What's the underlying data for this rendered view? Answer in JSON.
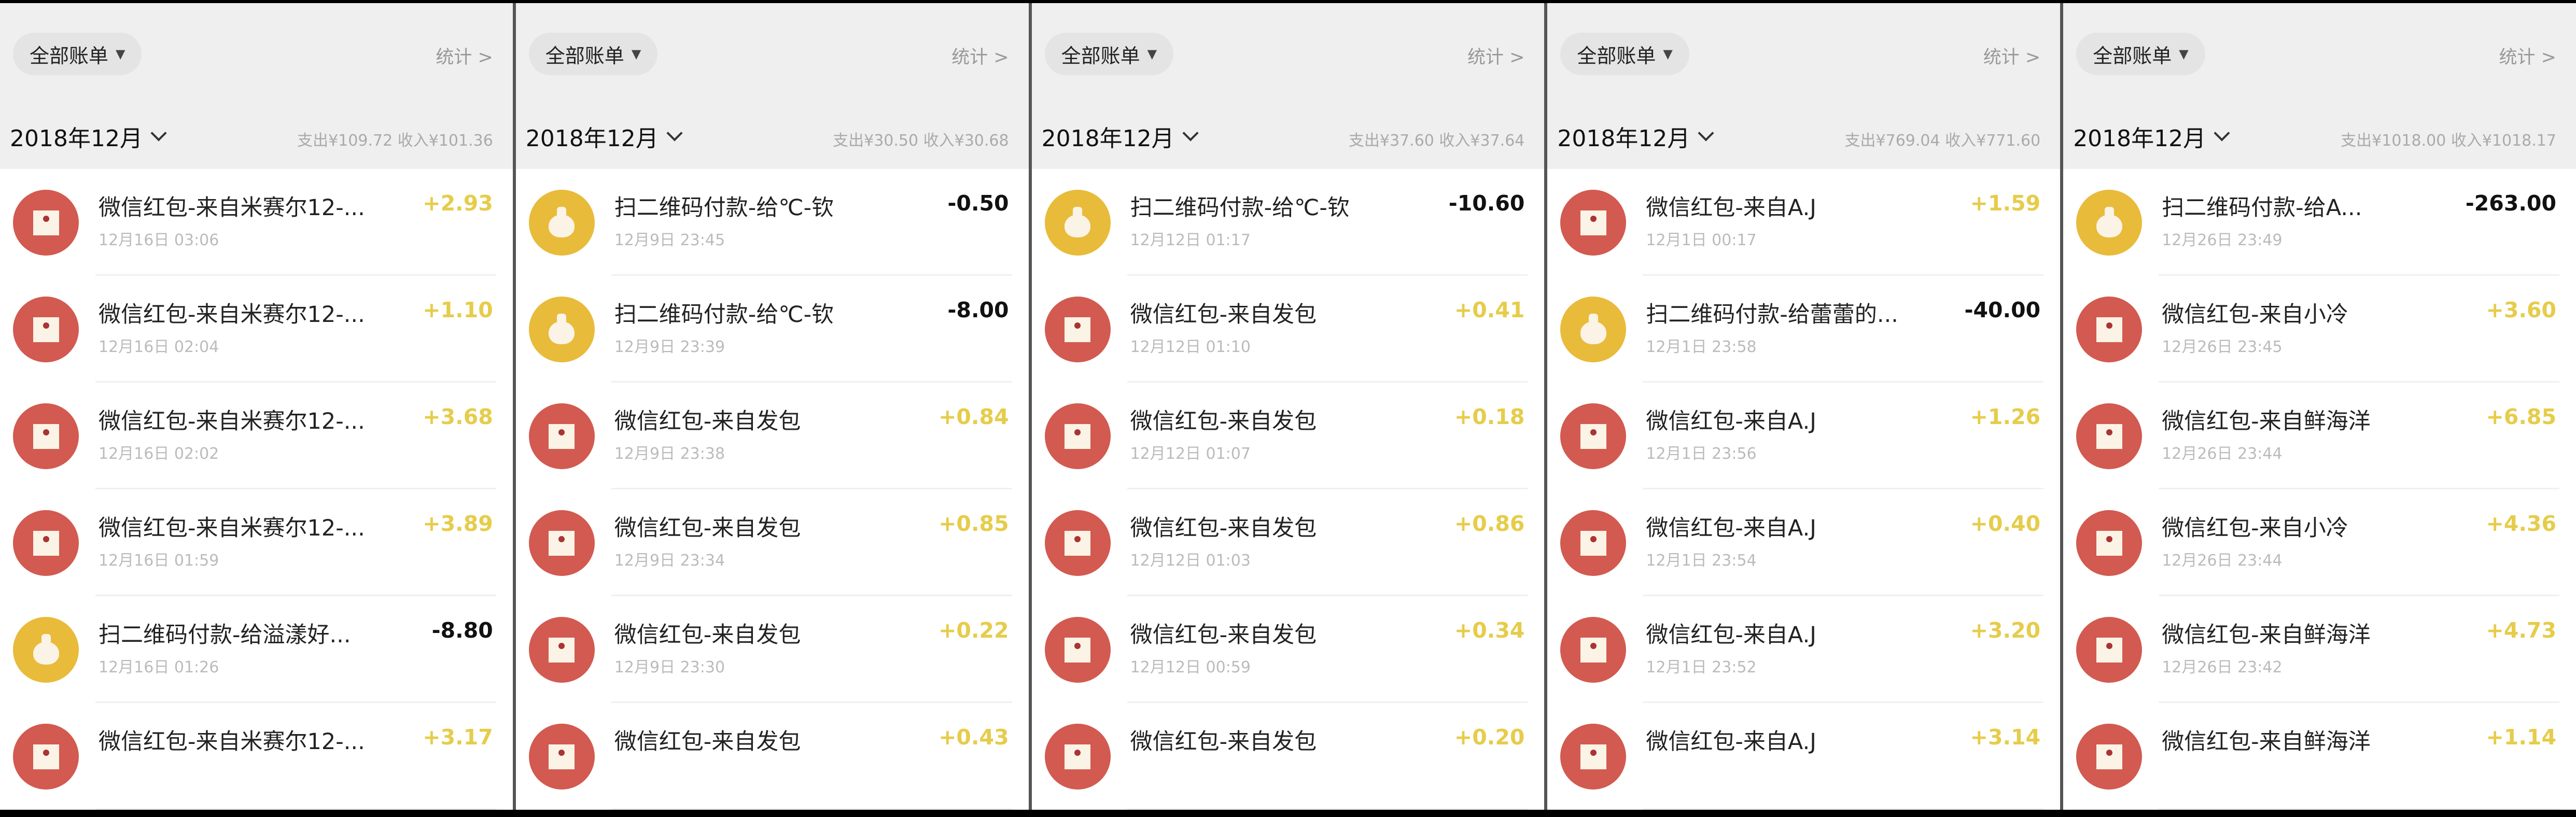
{
  "colors": {
    "income": "#e6cc4a",
    "expense": "#111111",
    "red_icon": "#d25a50",
    "yellow_icon": "#e8bb3a",
    "header_bg": "#efefef"
  },
  "panels": [
    {
      "filter": "全部账单",
      "stats": "统计 >",
      "month": "2018年12月",
      "summary": "支出¥109.72 收入¥101.36",
      "rows": [
        {
          "icon": "red-envelope-icon",
          "title": "微信红包-来自米赛尔12-...",
          "date": "12月16日 03:06",
          "amount": "+2.93",
          "type": "pos"
        },
        {
          "icon": "red-envelope-icon",
          "title": "微信红包-来自米赛尔12-...",
          "date": "12月16日 02:04",
          "amount": "+1.10",
          "type": "pos"
        },
        {
          "icon": "red-envelope-icon",
          "title": "微信红包-来自米赛尔12-...",
          "date": "12月16日 02:02",
          "amount": "+3.68",
          "type": "pos"
        },
        {
          "icon": "red-envelope-icon",
          "title": "微信红包-来自米赛尔12-...",
          "date": "12月16日 01:59",
          "amount": "+3.89",
          "type": "pos"
        },
        {
          "icon": "money-bag-icon",
          "title": "扫二维码付款-给溢漾好...",
          "date": "12月16日 01:26",
          "amount": "-8.80",
          "type": "neg"
        },
        {
          "icon": "red-envelope-icon",
          "title": "微信红包-来自米赛尔12-...",
          "date": "",
          "amount": "+3.17",
          "type": "pos"
        }
      ]
    },
    {
      "filter": "全部账单",
      "stats": "统计 >",
      "month": "2018年12月",
      "summary": "支出¥30.50 收入¥30.68",
      "rows": [
        {
          "icon": "money-bag-icon",
          "title": "扫二维码付款-给℃-钦",
          "date": "12月9日 23:45",
          "amount": "-0.50",
          "type": "neg"
        },
        {
          "icon": "money-bag-icon",
          "title": "扫二维码付款-给℃-钦",
          "date": "12月9日 23:39",
          "amount": "-8.00",
          "type": "neg"
        },
        {
          "icon": "red-envelope-icon",
          "title": "微信红包-来自发包",
          "date": "12月9日 23:38",
          "amount": "+0.84",
          "type": "pos"
        },
        {
          "icon": "red-envelope-icon",
          "title": "微信红包-来自发包",
          "date": "12月9日 23:34",
          "amount": "+0.85",
          "type": "pos"
        },
        {
          "icon": "red-envelope-icon",
          "title": "微信红包-来自发包",
          "date": "12月9日 23:30",
          "amount": "+0.22",
          "type": "pos"
        },
        {
          "icon": "red-envelope-icon",
          "title": "微信红包-来自发包",
          "date": "",
          "amount": "+0.43",
          "type": "pos"
        }
      ]
    },
    {
      "filter": "全部账单",
      "stats": "统计 >",
      "month": "2018年12月",
      "summary": "支出¥37.60 收入¥37.64",
      "rows": [
        {
          "icon": "money-bag-icon",
          "title": "扫二维码付款-给℃-钦",
          "date": "12月12日 01:17",
          "amount": "-10.60",
          "type": "neg"
        },
        {
          "icon": "red-envelope-icon",
          "title": "微信红包-来自发包",
          "date": "12月12日 01:10",
          "amount": "+0.41",
          "type": "pos"
        },
        {
          "icon": "red-envelope-icon",
          "title": "微信红包-来自发包",
          "date": "12月12日 01:07",
          "amount": "+0.18",
          "type": "pos"
        },
        {
          "icon": "red-envelope-icon",
          "title": "微信红包-来自发包",
          "date": "12月12日 01:03",
          "amount": "+0.86",
          "type": "pos"
        },
        {
          "icon": "red-envelope-icon",
          "title": "微信红包-来自发包",
          "date": "12月12日 00:59",
          "amount": "+0.34",
          "type": "pos"
        },
        {
          "icon": "red-envelope-icon",
          "title": "微信红包-来自发包",
          "date": "",
          "amount": "+0.20",
          "type": "pos"
        }
      ]
    },
    {
      "filter": "全部账单",
      "stats": "统计 >",
      "month": "2018年12月",
      "summary": "支出¥769.04 收入¥771.60",
      "rows": [
        {
          "icon": "red-envelope-icon",
          "title": "微信红包-来自A.J",
          "date": "12月1日 00:17",
          "amount": "+1.59",
          "type": "pos"
        },
        {
          "icon": "money-bag-icon",
          "title": "扫二维码付款-给蕾蕾的...",
          "date": "12月1日 23:58",
          "amount": "-40.00",
          "type": "neg"
        },
        {
          "icon": "red-envelope-icon",
          "title": "微信红包-来自A.J",
          "date": "12月1日 23:56",
          "amount": "+1.26",
          "type": "pos"
        },
        {
          "icon": "red-envelope-icon",
          "title": "微信红包-来自A.J",
          "date": "12月1日 23:54",
          "amount": "+0.40",
          "type": "pos"
        },
        {
          "icon": "red-envelope-icon",
          "title": "微信红包-来自A.J",
          "date": "12月1日 23:52",
          "amount": "+3.20",
          "type": "pos"
        },
        {
          "icon": "red-envelope-icon",
          "title": "微信红包-来自A.J",
          "date": "",
          "amount": "+3.14",
          "type": "pos"
        }
      ]
    },
    {
      "filter": "全部账单",
      "stats": "统计 >",
      "month": "2018年12月",
      "summary": "支出¥1018.00 收入¥1018.17",
      "rows": [
        {
          "icon": "money-bag-icon",
          "title": "扫二维码付款-给A...",
          "date": "12月26日 23:49",
          "amount": "-263.00",
          "type": "neg"
        },
        {
          "icon": "red-envelope-icon",
          "title": "微信红包-来自小冷",
          "date": "12月26日 23:45",
          "amount": "+3.60",
          "type": "pos"
        },
        {
          "icon": "red-envelope-icon",
          "title": "微信红包-来自鲜海洋",
          "date": "12月26日 23:44",
          "amount": "+6.85",
          "type": "pos"
        },
        {
          "icon": "red-envelope-icon",
          "title": "微信红包-来自小冷",
          "date": "12月26日 23:44",
          "amount": "+4.36",
          "type": "pos"
        },
        {
          "icon": "red-envelope-icon",
          "title": "微信红包-来自鲜海洋",
          "date": "12月26日 23:42",
          "amount": "+4.73",
          "type": "pos"
        },
        {
          "icon": "red-envelope-icon",
          "title": "微信红包-来自鲜海洋",
          "date": "",
          "amount": "+1.14",
          "type": "pos"
        }
      ]
    }
  ]
}
